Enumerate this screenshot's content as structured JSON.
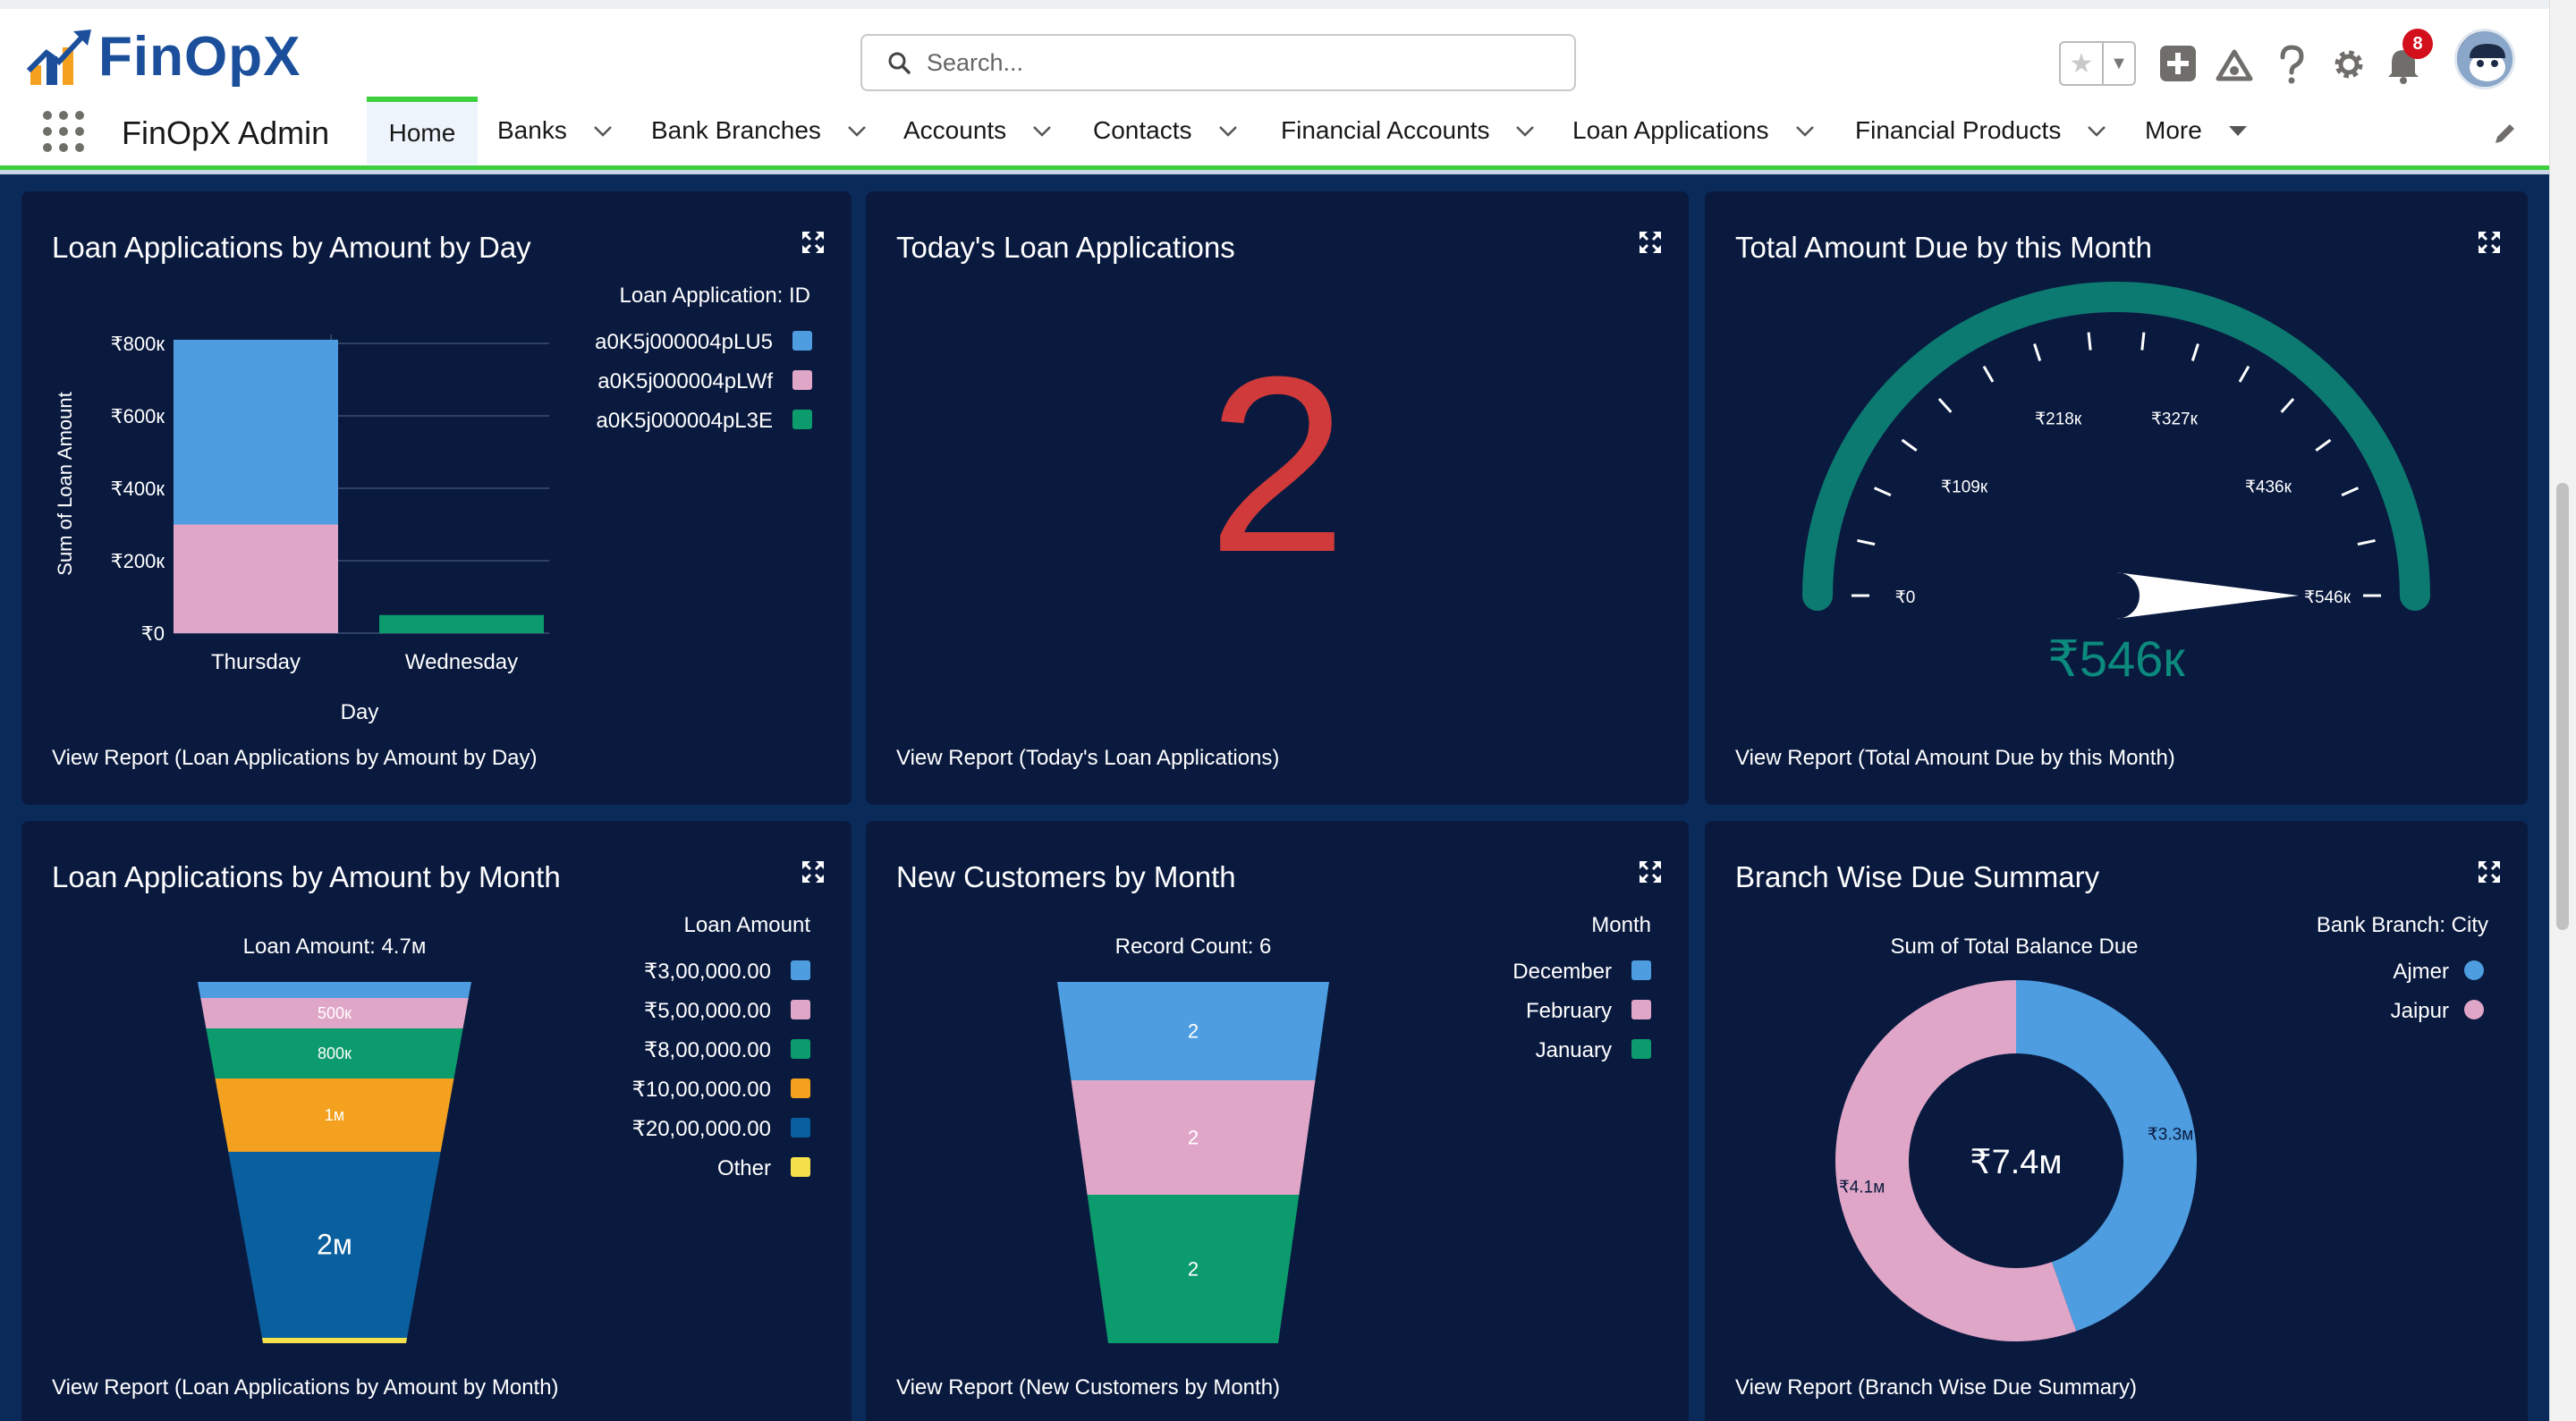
{
  "app": {
    "logo_text": "FinOpX",
    "app_name": "FinOpX Admin"
  },
  "search": {
    "placeholder": "Search..."
  },
  "header": {
    "notifications_count": "8"
  },
  "nav": {
    "tabs": [
      {
        "label": "Home",
        "active": true,
        "dropdown": false
      },
      {
        "label": "Banks",
        "dropdown": true
      },
      {
        "label": "Bank Branches",
        "dropdown": true
      },
      {
        "label": "Accounts",
        "dropdown": true
      },
      {
        "label": "Contacts",
        "dropdown": true
      },
      {
        "label": "Financial Accounts",
        "dropdown": true
      },
      {
        "label": "Loan Applications",
        "dropdown": true
      },
      {
        "label": "Financial Products",
        "dropdown": true
      },
      {
        "label": "More",
        "dropdown": true
      }
    ]
  },
  "colors": {
    "blue": "#4d9de0",
    "pink": "#e0a6c8",
    "green": "#0c9b6c",
    "orange": "#f3a11e",
    "darkblue": "#0a5f9e",
    "yellow": "#f4e14b",
    "teal": "#0c7a70",
    "red": "#d13a3a"
  },
  "cards": {
    "c1": {
      "title": "Loan Applications by Amount by Day",
      "view_report": "View Report (Loan Applications by Amount by Day)",
      "chart_data": {
        "type": "bar",
        "stacked": true,
        "xlabel": "Day",
        "ylabel": "Sum of Loan Amount",
        "y_ticks": [
          "₹0",
          "₹200к",
          "₹400к",
          "₹600к",
          "₹800к"
        ],
        "ylim": [
          0,
          800000
        ],
        "categories": [
          "Thursday",
          "Wednesday"
        ],
        "legend_title": "Loan Application: ID",
        "series": [
          {
            "name": "a0K5j000004pLU5",
            "color": "#4d9de0",
            "values": [
              510000,
              0
            ]
          },
          {
            "name": "a0K5j000004pLWf",
            "color": "#e0a6c8",
            "values": [
              300000,
              0
            ]
          },
          {
            "name": "a0K5j000004pL3E",
            "color": "#0c9b6c",
            "values": [
              0,
              50000
            ]
          }
        ]
      }
    },
    "c2": {
      "title": "Today's Loan Applications",
      "value": "2",
      "view_report": "View Report (Today's Loan Applications)"
    },
    "c3": {
      "title": "Total Amount Due by this Month",
      "view_report": "View Report (Total Amount Due by this Month)",
      "chart_data": {
        "type": "gauge",
        "min": 0,
        "max": 546000,
        "value": 546000,
        "value_label": "₹546к",
        "tick_labels": [
          "₹0",
          "₹109к",
          "₹218к",
          "₹327к",
          "₹436к",
          "₹546к"
        ]
      }
    },
    "c4": {
      "title": "Loan Applications by Amount by Month",
      "view_report": "View Report (Loan Applications by Amount by Month)",
      "chart_data": {
        "type": "funnel",
        "header": "Loan Amount: 4.7м",
        "legend_title": "Loan Amount",
        "segments": [
          {
            "name": "₹3,00,000.00",
            "color": "#4d9de0",
            "value": 300000,
            "label": ""
          },
          {
            "name": "₹5,00,000.00",
            "color": "#e0a6c8",
            "value": 500000,
            "label": "500к"
          },
          {
            "name": "₹8,00,000.00",
            "color": "#0c9b6c",
            "value": 800000,
            "label": "800к"
          },
          {
            "name": "₹10,00,000.00",
            "color": "#f3a11e",
            "value": 1000000,
            "label": "1м"
          },
          {
            "name": "₹20,00,000.00",
            "color": "#0a5f9e",
            "value": 2000000,
            "label": "2м"
          },
          {
            "name": "Other",
            "color": "#f4e14b",
            "value": 100000,
            "label": ""
          }
        ]
      }
    },
    "c5": {
      "title": "New Customers by Month",
      "view_report": "View Report (New Customers by Month)",
      "chart_data": {
        "type": "funnel",
        "header": "Record Count: 6",
        "legend_title": "Month",
        "segments": [
          {
            "name": "December",
            "color": "#4d9de0",
            "value": 2,
            "label": "2"
          },
          {
            "name": "February",
            "color": "#e0a6c8",
            "value": 2,
            "label": "2"
          },
          {
            "name": "January",
            "color": "#0c9b6c",
            "value": 2,
            "label": "2"
          }
        ]
      }
    },
    "c6": {
      "title": "Branch Wise Due Summary",
      "view_report": "View Report (Branch Wise Due Summary)",
      "chart_data": {
        "type": "donut",
        "header": "Sum of Total Balance Due",
        "legend_title": "Bank Branch: City",
        "center_label": "₹7.4м",
        "segments": [
          {
            "name": "Ajmer",
            "color": "#4d9de0",
            "value": 3.3,
            "label": "₹3.3м"
          },
          {
            "name": "Jaipur",
            "color": "#e0a6c8",
            "value": 4.1,
            "label": "₹4.1м"
          }
        ]
      }
    }
  }
}
